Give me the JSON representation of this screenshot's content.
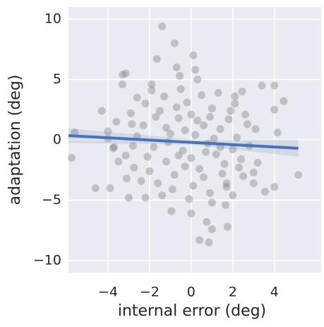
{
  "chart_data": {
    "type": "scatter",
    "xlabel": "internal error (deg)",
    "ylabel": "adaptation (deg)",
    "xlim": [
      -5.9,
      6.25
    ],
    "ylim": [
      -11,
      11
    ],
    "xticks": [
      {
        "value": -4,
        "label": "−4"
      },
      {
        "value": -2,
        "label": "−2"
      },
      0,
      2,
      4
    ],
    "yticks": [
      {
        "value": -10,
        "label": "−10"
      },
      {
        "value": -5,
        "label": "−5"
      },
      0,
      5,
      10
    ],
    "grid": true,
    "color": "#808080",
    "opacity": 0.4,
    "x": [
      -1.4,
      -0.8,
      0.1,
      -1.65,
      -3.15,
      -3.3,
      -3.3,
      -4.3,
      -5.6,
      -5.75,
      -4.6,
      -3.9,
      -4.0,
      -4.0,
      -3.75,
      -3.1,
      -3.0,
      -2.2,
      -0.95,
      0,
      0.4,
      0.85,
      1.0,
      1.75,
      0.75,
      1.65,
      4.0,
      3.55,
      5.15,
      4.45,
      3.4,
      4.0,
      4.0,
      4.15,
      3.1,
      3.0,
      1.7,
      2.45,
      2.1,
      0.2,
      -0.7,
      -0.55,
      -1.9,
      -2.85,
      -2.8,
      -3.15,
      -2.75,
      -3.6,
      -2.2,
      -2.6,
      -2.3,
      -1.8,
      -1.5,
      -1.2,
      -1.0,
      -0.8,
      -0.6,
      -0.4,
      -0.2,
      0,
      0.2,
      0.4,
      0.6,
      0.8,
      1.0,
      1.2,
      1.4,
      1.6,
      1.8,
      2.0,
      2.2,
      2.4,
      2.6,
      2.8,
      -2.0,
      -1.6,
      -1.3,
      -0.9,
      -0.5,
      0.1,
      0.5,
      0.9,
      1.3,
      1.7,
      2.1,
      2.5,
      -2.6,
      -2.1,
      -1.7,
      -1.1,
      -0.7,
      -0.3,
      0.3,
      0.7,
      1.1,
      1.5,
      1.9,
      2.3,
      -1.4,
      -0.1,
      1.0,
      0.3,
      -1.9,
      -2.4,
      2.7,
      3.2,
      3.0,
      -3.5,
      -3.7,
      -2.9,
      0.0,
      0.6,
      -0.6,
      1.4,
      -1.2,
      2.0,
      -0.3,
      0.9
    ],
    "values": [
      9.4,
      8.0,
      7.0,
      6.7,
      5.5,
      5.4,
      4.6,
      2.4,
      0.6,
      -1.5,
      -4.0,
      -4.0,
      0.7,
      0.1,
      -0.7,
      -3.2,
      -4.8,
      -4.8,
      -5.9,
      -6.1,
      -8.3,
      -8.5,
      -7.4,
      -7.2,
      -6.8,
      -5.4,
      -3.9,
      -4.3,
      -2.9,
      3.2,
      4.5,
      4.5,
      2.5,
      0.6,
      0.9,
      -3.6,
      -3.6,
      4.0,
      3.6,
      5.8,
      6.0,
      5.3,
      4.6,
      1.3,
      -0.5,
      -1.3,
      -2.3,
      1.5,
      3.0,
      3.5,
      1.2,
      -0.6,
      2.4,
      -1.8,
      0.5,
      -2.9,
      1.8,
      -0.9,
      3.1,
      -1.5,
      0.4,
      -2.4,
      1.2,
      -0.3,
      2.6,
      -1.2,
      0.9,
      -2.0,
      1.7,
      -0.8,
      0.2,
      -1.6,
      2.1,
      -0.5,
      -2.6,
      -3.6,
      3.6,
      -4.1,
      4.2,
      -3.8,
      3.7,
      -4.4,
      3.9,
      -3.9,
      3.0,
      -3.0,
      0.3,
      -1.4,
      1.9,
      -0.2,
      2.7,
      -2.2,
      1.6,
      -1.0,
      0.1,
      -2.8,
      2.4,
      -2.3,
      -4.6,
      -4.9,
      -5.2,
      5.0,
      4.1,
      -3.4,
      1.3,
      -1.9,
      -2.7,
      -1.8,
      -0.6,
      2.2,
      2.1,
      -3.1,
      -1.3,
      -0.6,
      1.0,
      -4.6,
      0.8,
      1.9
    ],
    "regression": {
      "color": "#4c72b0",
      "x": [
        -5.9,
        5.15
      ],
      "values": [
        0.35,
        -0.7
      ],
      "band": {
        "x": [
          -5.9,
          0,
          5.15
        ],
        "upper": [
          0.95,
          0.05,
          0.0
        ],
        "lower": [
          -0.25,
          -0.4,
          -1.4
        ]
      }
    }
  }
}
